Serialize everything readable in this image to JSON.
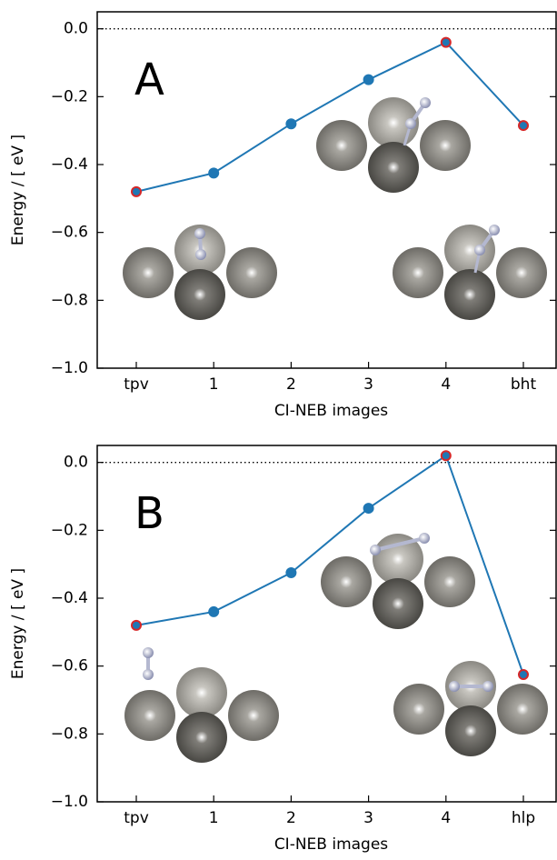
{
  "chart_data": [
    {
      "type": "line",
      "annotation": "A",
      "xlabel": "CI-NEB images",
      "ylabel": "Energy / [ eV ]",
      "categories": [
        "tpv",
        "1",
        "2",
        "3",
        "4",
        "bht"
      ],
      "series": [
        {
          "color": "#1f77b4",
          "values": [
            -0.48,
            -0.425,
            -0.28,
            -0.15,
            -0.04,
            -0.285
          ],
          "marker_edge_colors": [
            "#d62728",
            "#1f77b4",
            "#1f77b4",
            "#1f77b4",
            "#d62728",
            "#d62728"
          ]
        }
      ],
      "ylim": [
        -1.0,
        0.05
      ],
      "reference_line": 0,
      "yticks": [
        {
          "value": -1.0,
          "label": "−1.0"
        },
        {
          "value": -0.8,
          "label": "−0.8"
        },
        {
          "value": -0.6,
          "label": "−0.6"
        },
        {
          "value": -0.4,
          "label": "−0.4"
        },
        {
          "value": -0.2,
          "label": "−0.2"
        },
        {
          "value": 0.0,
          "label": "0.0"
        }
      ]
    },
    {
      "type": "line",
      "annotation": "B",
      "xlabel": "CI-NEB images",
      "ylabel": "Energy / [ eV ]",
      "categories": [
        "tpv",
        "1",
        "2",
        "3",
        "4",
        "hlp"
      ],
      "series": [
        {
          "color": "#1f77b4",
          "values": [
            -0.48,
            -0.44,
            -0.325,
            -0.135,
            0.02,
            -0.625
          ],
          "marker_edge_colors": [
            "#d62728",
            "#1f77b4",
            "#1f77b4",
            "#1f77b4",
            "#d62728",
            "#d62728"
          ]
        }
      ],
      "ylim": [
        -1.0,
        0.05
      ],
      "reference_line": 0,
      "yticks": [
        {
          "value": -1.0,
          "label": "−1.0"
        },
        {
          "value": -0.8,
          "label": "−0.8"
        },
        {
          "value": -0.6,
          "label": "−0.6"
        },
        {
          "value": -0.4,
          "label": "−0.4"
        },
        {
          "value": -0.2,
          "label": "−0.2"
        },
        {
          "value": 0.0,
          "label": "0.0"
        }
      ]
    }
  ]
}
